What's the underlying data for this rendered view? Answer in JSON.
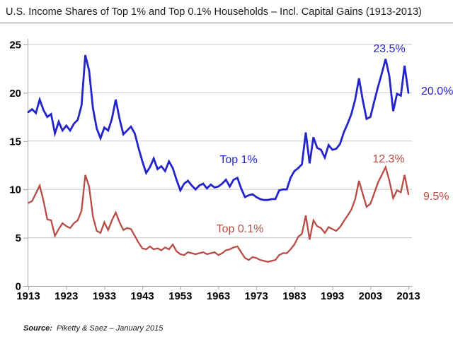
{
  "header": {
    "title": "U.S. Income Shares of Top 1% and Top 0.1% Households – Incl. Capital Gains (1913-2013)"
  },
  "source": {
    "label": "Source:",
    "text": "Piketty & Saez – January 2015"
  },
  "chart_data": {
    "type": "line",
    "title": "U.S. Income Shares of Top 1% and Top 0.1% Households – Incl. Capital Gains (1913-2013)",
    "xlabel": "",
    "ylabel": "",
    "x_range": [
      1913,
      2013
    ],
    "x_step": 1,
    "x_ticks": [
      1913,
      1923,
      1933,
      1943,
      1953,
      1963,
      1973,
      1983,
      1993,
      2003,
      2013
    ],
    "ylim": [
      0,
      25
    ],
    "y_ticks": [
      0,
      5,
      10,
      15,
      20,
      25
    ],
    "grid": "horizontal",
    "legend": "inline-labels",
    "colors": {
      "gridline": "#c6c6c6",
      "axis": "#a6a6a6",
      "text": "#000000",
      "title_rule": "#7f7f7f"
    },
    "series": [
      {
        "name": "Top 1%",
        "label": "Top 1%",
        "color": "#2424cc",
        "values": [
          18.0,
          18.3,
          17.9,
          19.3,
          18.2,
          17.5,
          17.8,
          15.8,
          17.0,
          16.1,
          16.6,
          16.1,
          16.8,
          17.2,
          18.7,
          23.9,
          22.3,
          18.4,
          16.3,
          15.3,
          16.4,
          16.1,
          17.3,
          19.3,
          17.3,
          15.7,
          16.1,
          16.5,
          15.8,
          14.3,
          12.9,
          11.7,
          12.3,
          13.2,
          12.1,
          12.4,
          11.9,
          12.9,
          12.2,
          11.0,
          9.9,
          10.6,
          10.9,
          10.4,
          10.0,
          10.4,
          10.6,
          10.1,
          10.5,
          10.2,
          10.3,
          10.6,
          11.0,
          10.3,
          11.0,
          11.2,
          10.1,
          9.2,
          9.4,
          9.5,
          9.2,
          9.0,
          8.9,
          8.9,
          9.0,
          9.0,
          9.9,
          10.0,
          10.0,
          11.2,
          11.9,
          12.2,
          12.6,
          15.9,
          12.7,
          15.4,
          14.3,
          14.1,
          13.3,
          14.6,
          14.1,
          14.2,
          14.7,
          15.9,
          16.8,
          17.8,
          19.3,
          21.5,
          19.2,
          17.3,
          17.5,
          19.1,
          20.6,
          22.0,
          23.5,
          21.7,
          18.1,
          19.9,
          19.7,
          22.8,
          20.0
        ]
      },
      {
        "name": "Top 0.1%",
        "label": "Top 0.1%",
        "color": "#b84b45",
        "values": [
          8.6,
          8.8,
          9.6,
          10.4,
          8.8,
          6.9,
          6.8,
          5.2,
          5.9,
          6.5,
          6.2,
          6.0,
          6.5,
          6.8,
          7.8,
          11.5,
          10.3,
          7.2,
          5.7,
          5.5,
          6.6,
          5.8,
          6.8,
          7.6,
          6.6,
          5.8,
          6.0,
          5.9,
          5.2,
          4.5,
          3.9,
          3.8,
          4.1,
          3.8,
          3.9,
          3.7,
          4.0,
          3.8,
          4.3,
          3.6,
          3.3,
          3.2,
          3.5,
          3.4,
          3.3,
          3.4,
          3.5,
          3.3,
          3.4,
          3.5,
          3.2,
          3.4,
          3.7,
          3.8,
          4.0,
          4.1,
          3.5,
          2.9,
          2.7,
          3.0,
          2.9,
          2.7,
          2.6,
          2.5,
          2.6,
          2.7,
          3.2,
          3.4,
          3.4,
          3.8,
          4.3,
          5.1,
          5.4,
          7.3,
          4.8,
          6.8,
          6.2,
          6.0,
          5.5,
          6.1,
          5.9,
          5.7,
          6.1,
          6.7,
          7.3,
          7.9,
          9.0,
          10.9,
          9.5,
          8.2,
          8.5,
          9.6,
          10.7,
          11.5,
          12.3,
          10.9,
          9.1,
          9.9,
          9.7,
          11.5,
          9.5
        ]
      }
    ],
    "annotations": {
      "top1_peak": {
        "text": "23.5%",
        "year": 2007,
        "value": 23.5
      },
      "top1_end": {
        "text": "20.0%",
        "year": 2013,
        "value": 20.0
      },
      "top01_peak": {
        "text": "12.3%",
        "year": 2007,
        "value": 12.3
      },
      "top01_end": {
        "text": "9.5%",
        "year": 2013,
        "value": 9.5
      }
    }
  }
}
